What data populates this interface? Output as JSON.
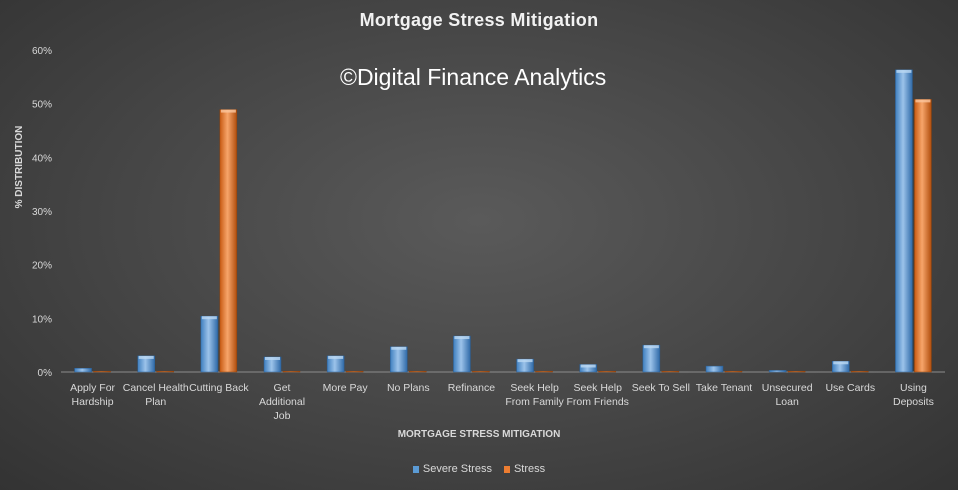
{
  "chart_data": {
    "type": "bar",
    "title": "Mortgage Stress Mitigation",
    "watermark": "©Digital Finance Analytics",
    "xlabel": "MORTGAGE STRESS  MITIGATION",
    "ylabel": "% DISTRIBUTION",
    "ylim": [
      0,
      60
    ],
    "yticks": [
      "0%",
      "10%",
      "20%",
      "30%",
      "40%",
      "50%",
      "60%"
    ],
    "grid": false,
    "legend_position": "bottom",
    "categories": [
      "Apply For Hardship",
      "Cancel Health Plan",
      "Cutting Back",
      "Get Additional Job",
      "More Pay",
      "No Plans",
      "Refinance",
      "Seek Help From Family",
      "Seek Help From Friends",
      "Seek To Sell",
      "Take Tenant",
      "Unsecured Loan",
      "Use Cards",
      "Using Deposits"
    ],
    "series": [
      {
        "name": "Severe Stress",
        "color": "#5b9bd5",
        "values": [
          0.7,
          3.0,
          10.4,
          2.8,
          3.0,
          4.7,
          6.7,
          2.4,
          1.4,
          5.0,
          1.1,
          0.3,
          2.0,
          56.3
        ]
      },
      {
        "name": "Stress",
        "color": "#ed7d31",
        "values": [
          0.1,
          0.1,
          48.9,
          0.1,
          0.1,
          0.1,
          0.1,
          0.1,
          0.0,
          0.0,
          0.0,
          0.0,
          0.0,
          50.8
        ]
      }
    ]
  }
}
